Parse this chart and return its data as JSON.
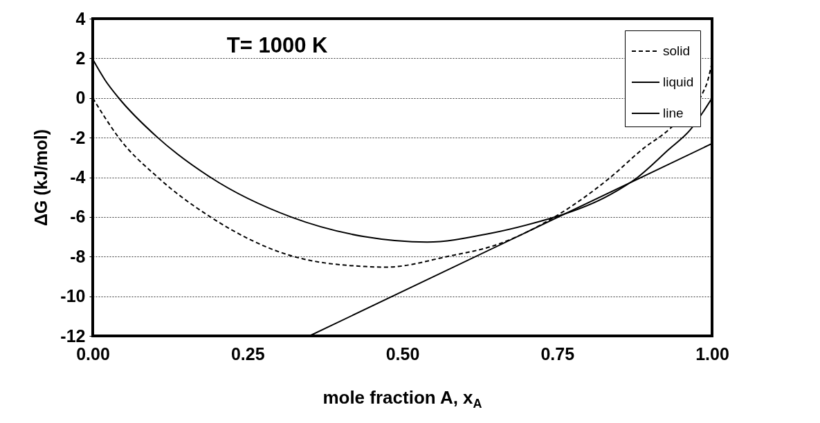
{
  "chart_data": {
    "type": "line",
    "title": "T= 1000 K",
    "xlabel": "mole fraction A, x$_{A}$",
    "ylabel": "ΔG (kJ/mol)",
    "xlim": [
      0,
      1
    ],
    "xticks": [
      {
        "value": 0,
        "label": "0.00"
      },
      {
        "value": 0.25,
        "label": "0.25"
      },
      {
        "value": 0.5,
        "label": "0.50"
      },
      {
        "value": 0.75,
        "label": "0.75"
      },
      {
        "value": 1,
        "label": "1.00"
      }
    ],
    "ylim": [
      -12,
      4
    ],
    "yticks": [
      -12,
      -10,
      -8,
      -6,
      -4,
      -2,
      0,
      2,
      4
    ],
    "grid": "y",
    "legend": "top right",
    "marker": "none",
    "series": [
      {
        "name": "solid",
        "color": "#000000",
        "line_style": "dashed",
        "x": [
          0,
          0.02,
          0.042,
          0.105,
          0.19,
          0.325,
          0.44,
          0.474,
          0.572,
          0.655,
          0.75,
          0.836,
          0.889,
          0.93,
          0.99,
          1
        ],
        "values": [
          0,
          -1,
          -2,
          -4,
          -6,
          -8,
          -8.5,
          -8.53,
          -8,
          -7.37,
          -5.92,
          -4,
          -2.55,
          -1.6,
          0.6,
          1.8
        ]
      },
      {
        "name": "liquid",
        "color": "#000000",
        "line_style": "solid",
        "x": [
          0,
          0.02,
          0.042,
          0.105,
          0.19,
          0.32,
          0.44,
          0.54,
          0.64,
          0.737,
          0.75,
          0.836,
          0.88,
          0.93,
          0.965,
          1
        ],
        "values": [
          1.95,
          0.9,
          0,
          -2,
          -4,
          -6,
          -7,
          -7.27,
          -6.84,
          -6.09,
          -5.97,
          -4.87,
          -4,
          -2.6,
          -1.6,
          0
        ]
      },
      {
        "name": "line",
        "color": "#000000",
        "line_style": "solid",
        "x": [
          0.35,
          1
        ],
        "values": [
          -12,
          -2.3
        ]
      }
    ]
  }
}
